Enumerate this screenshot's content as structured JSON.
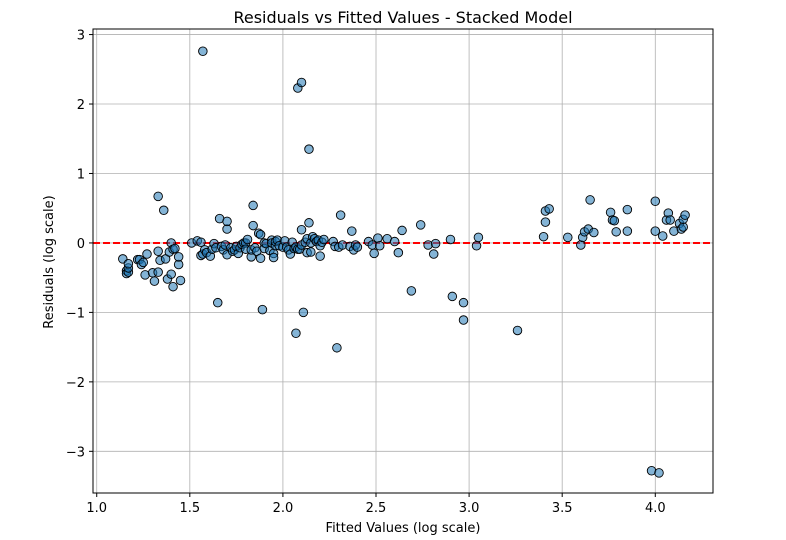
{
  "chart_data": {
    "type": "scatter",
    "title": "Residuals vs Fitted Values - Stacked Model",
    "xlabel": "Fitted Values (log scale)",
    "ylabel": "Residuals (log scale)",
    "xlim": [
      0.98,
      4.31
    ],
    "ylim": [
      -3.6,
      3.08
    ],
    "xticks": [
      1.0,
      1.5,
      2.0,
      2.5,
      3.0,
      3.5,
      4.0
    ],
    "xtick_labels": [
      "1.0",
      "1.5",
      "2.0",
      "2.5",
      "3.0",
      "3.5",
      "4.0"
    ],
    "yticks": [
      -3,
      -2,
      -1,
      0,
      1,
      2,
      3
    ],
    "ytick_labels": [
      "−3",
      "−2",
      "−1",
      "0",
      "1",
      "2",
      "3"
    ],
    "grid": true,
    "reference_line": {
      "y": 0,
      "color": "#ff0000",
      "style": "dashed"
    },
    "point_color": "#1f77b4",
    "points": [
      [
        1.14,
        -0.23
      ],
      [
        1.16,
        -0.4
      ],
      [
        1.16,
        -0.44
      ],
      [
        1.17,
        -0.42
      ],
      [
        1.17,
        -0.36
      ],
      [
        1.17,
        -0.3
      ],
      [
        1.22,
        -0.24
      ],
      [
        1.23,
        -0.24
      ],
      [
        1.24,
        -0.31
      ],
      [
        1.25,
        -0.28
      ],
      [
        1.26,
        -0.46
      ],
      [
        1.27,
        -0.16
      ],
      [
        1.3,
        -0.43
      ],
      [
        1.31,
        -0.55
      ],
      [
        1.33,
        -0.42
      ],
      [
        1.33,
        0.67
      ],
      [
        1.33,
        -0.12
      ],
      [
        1.34,
        -0.25
      ],
      [
        1.36,
        0.47
      ],
      [
        1.37,
        -0.23
      ],
      [
        1.38,
        -0.52
      ],
      [
        1.39,
        -0.13
      ],
      [
        1.4,
        0.0
      ],
      [
        1.4,
        -0.45
      ],
      [
        1.41,
        -0.09
      ],
      [
        1.41,
        -0.63
      ],
      [
        1.42,
        -0.08
      ],
      [
        1.44,
        -0.31
      ],
      [
        1.44,
        -0.2
      ],
      [
        1.45,
        -0.54
      ],
      [
        1.51,
        0.0
      ],
      [
        1.54,
        0.03
      ],
      [
        1.56,
        -0.18
      ],
      [
        1.56,
        0.01
      ],
      [
        1.57,
        -0.16
      ],
      [
        1.57,
        2.76
      ],
      [
        1.58,
        -0.1
      ],
      [
        1.59,
        -0.14
      ],
      [
        1.61,
        -0.19
      ],
      [
        1.62,
        -0.09
      ],
      [
        1.63,
        -0.01
      ],
      [
        1.64,
        -0.07
      ],
      [
        1.65,
        -0.86
      ],
      [
        1.66,
        0.35
      ],
      [
        1.67,
        -0.05
      ],
      [
        1.68,
        -0.1
      ],
      [
        1.69,
        -0.03
      ],
      [
        1.7,
        0.2
      ],
      [
        1.7,
        0.31
      ],
      [
        1.7,
        -0.17
      ],
      [
        1.72,
        -0.07
      ],
      [
        1.73,
        -0.12
      ],
      [
        1.74,
        -0.1
      ],
      [
        1.75,
        -0.05
      ],
      [
        1.76,
        -0.15
      ],
      [
        1.77,
        -0.07
      ],
      [
        1.78,
        -0.02
      ],
      [
        1.79,
        0.0
      ],
      [
        1.8,
        0.0
      ],
      [
        1.8,
        -0.09
      ],
      [
        1.81,
        0.05
      ],
      [
        1.83,
        -0.2
      ],
      [
        1.83,
        -0.1
      ],
      [
        1.84,
        0.25
      ],
      [
        1.84,
        0.54
      ],
      [
        1.85,
        -0.07
      ],
      [
        1.86,
        -0.12
      ],
      [
        1.87,
        0.14
      ],
      [
        1.88,
        0.12
      ],
      [
        1.88,
        -0.22
      ],
      [
        1.89,
        -0.96
      ],
      [
        1.9,
        0.0
      ],
      [
        1.9,
        -0.08
      ],
      [
        1.91,
        -0.01
      ],
      [
        1.93,
        -0.11
      ],
      [
        1.94,
        0.04
      ],
      [
        1.94,
        0.0
      ],
      [
        1.95,
        -0.15
      ],
      [
        1.95,
        -0.21
      ],
      [
        1.96,
        -0.04
      ],
      [
        1.96,
        0.02
      ],
      [
        1.97,
        0.04
      ],
      [
        1.98,
        -0.04
      ],
      [
        2.0,
        -0.06
      ],
      [
        2.01,
        0.03
      ],
      [
        2.02,
        -0.06
      ],
      [
        2.03,
        -0.1
      ],
      [
        2.04,
        -0.16
      ],
      [
        2.05,
        0.01
      ],
      [
        2.06,
        -0.08
      ],
      [
        2.07,
        -1.3
      ],
      [
        2.07,
        -0.06
      ],
      [
        2.08,
        2.23
      ],
      [
        2.08,
        -0.09
      ],
      [
        2.09,
        -0.09
      ],
      [
        2.1,
        2.31
      ],
      [
        2.1,
        -0.03
      ],
      [
        2.1,
        0.19
      ],
      [
        2.11,
        -1.0
      ],
      [
        2.12,
        0.01
      ],
      [
        2.13,
        0.06
      ],
      [
        2.13,
        -0.14
      ],
      [
        2.14,
        0.29
      ],
      [
        2.14,
        1.35
      ],
      [
        2.15,
        0.0
      ],
      [
        2.15,
        -0.13
      ],
      [
        2.16,
        0.09
      ],
      [
        2.17,
        0.06
      ],
      [
        2.18,
        0.02
      ],
      [
        2.19,
        0.04
      ],
      [
        2.2,
        -0.19
      ],
      [
        2.2,
        -0.04
      ],
      [
        2.21,
        0.01
      ],
      [
        2.22,
        0.05
      ],
      [
        2.27,
        0.02
      ],
      [
        2.28,
        -0.05
      ],
      [
        2.29,
        -1.51
      ],
      [
        2.3,
        -0.06
      ],
      [
        2.31,
        0.4
      ],
      [
        2.32,
        -0.03
      ],
      [
        2.36,
        -0.05
      ],
      [
        2.37,
        0.17
      ],
      [
        2.38,
        -0.1
      ],
      [
        2.39,
        -0.03
      ],
      [
        2.4,
        -0.06
      ],
      [
        2.46,
        0.02
      ],
      [
        2.48,
        -0.03
      ],
      [
        2.49,
        -0.15
      ],
      [
        2.51,
        0.07
      ],
      [
        2.52,
        -0.04
      ],
      [
        2.56,
        0.06
      ],
      [
        2.6,
        0.02
      ],
      [
        2.62,
        -0.14
      ],
      [
        2.64,
        0.18
      ],
      [
        2.69,
        -0.69
      ],
      [
        2.74,
        0.26
      ],
      [
        2.78,
        -0.03
      ],
      [
        2.81,
        -0.16
      ],
      [
        2.82,
        -0.01
      ],
      [
        2.9,
        0.05
      ],
      [
        2.91,
        -0.77
      ],
      [
        2.97,
        -0.86
      ],
      [
        2.97,
        -1.11
      ],
      [
        3.04,
        -0.04
      ],
      [
        3.05,
        0.08
      ],
      [
        3.26,
        -1.26
      ],
      [
        3.4,
        0.09
      ],
      [
        3.41,
        0.3
      ],
      [
        3.41,
        0.46
      ],
      [
        3.43,
        0.49
      ],
      [
        3.53,
        0.08
      ],
      [
        3.6,
        -0.03
      ],
      [
        3.61,
        0.08
      ],
      [
        3.62,
        0.16
      ],
      [
        3.64,
        0.2
      ],
      [
        3.65,
        0.62
      ],
      [
        3.67,
        0.15
      ],
      [
        3.76,
        0.44
      ],
      [
        3.77,
        0.33
      ],
      [
        3.78,
        0.32
      ],
      [
        3.79,
        0.16
      ],
      [
        3.85,
        0.48
      ],
      [
        3.85,
        0.17
      ],
      [
        3.98,
        -3.28
      ],
      [
        4.0,
        0.6
      ],
      [
        4.0,
        0.17
      ],
      [
        4.02,
        -3.31
      ],
      [
        4.04,
        0.1
      ],
      [
        4.06,
        0.33
      ],
      [
        4.07,
        0.43
      ],
      [
        4.08,
        0.33
      ],
      [
        4.1,
        0.17
      ],
      [
        4.13,
        0.28
      ],
      [
        4.14,
        0.2
      ],
      [
        4.15,
        0.23
      ],
      [
        4.15,
        0.34
      ],
      [
        4.16,
        0.4
      ]
    ]
  }
}
